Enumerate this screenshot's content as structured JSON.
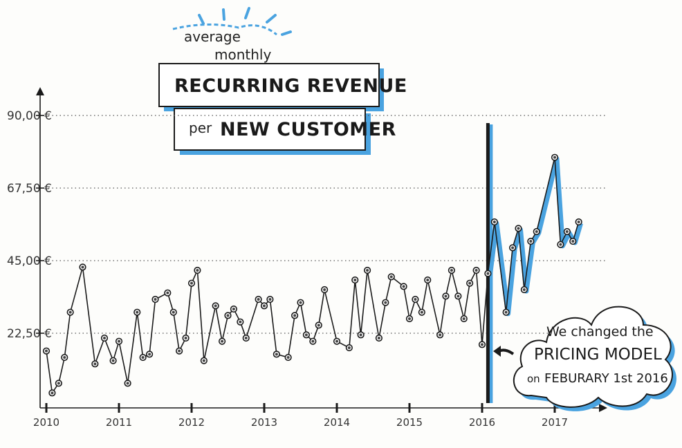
{
  "title": {
    "line1": "average",
    "line2": "monthly",
    "line3": "RECURRING REVENUE",
    "line4_small": "per",
    "line4_large": "NEW CUSTOMER"
  },
  "annotation": {
    "line1": "We changed the",
    "line2": "PRICING MODEL",
    "line3_on": "on",
    "line3_date": "FEBURARY 1st 2016"
  },
  "colors": {
    "accent": "#4aa3e0",
    "ink": "#1a1a1a",
    "grid": "#555555"
  },
  "chart_data": {
    "type": "line",
    "title": "average monthly RECURRING REVENUE per NEW CUSTOMER",
    "xlabel": "",
    "ylabel": "",
    "ylim": [
      0,
      95
    ],
    "yticks": [
      22.5,
      45,
      67.5,
      90
    ],
    "ytick_labels": [
      "22,50 €",
      "45,00 €",
      "67,50 €",
      "90,00 €"
    ],
    "xticks": [
      2010,
      2011,
      2012,
      2013,
      2014,
      2015,
      2016,
      2017
    ],
    "xtick_labels": [
      "2010",
      "2011",
      "2012",
      "2013",
      "2014",
      "2015",
      "2016",
      "2017"
    ],
    "grid": "horizontal dotted",
    "event_line_x": 2016.08,
    "series": [
      {
        "values": [
          [
            2010.0,
            17
          ],
          [
            2010.08,
            4
          ],
          [
            2010.17,
            7
          ],
          [
            2010.25,
            15
          ],
          [
            2010.33,
            29
          ],
          [
            2010.5,
            43
          ],
          [
            2010.67,
            13
          ],
          [
            2010.8,
            21
          ],
          [
            2010.92,
            14
          ],
          [
            2011.0,
            20
          ],
          [
            2011.12,
            7
          ],
          [
            2011.25,
            29
          ],
          [
            2011.33,
            15
          ],
          [
            2011.42,
            16
          ],
          [
            2011.5,
            33
          ],
          [
            2011.67,
            35
          ],
          [
            2011.75,
            29
          ],
          [
            2011.83,
            17
          ],
          [
            2011.92,
            21
          ],
          [
            2012.0,
            38
          ],
          [
            2012.08,
            42
          ],
          [
            2012.17,
            14
          ],
          [
            2012.33,
            31
          ],
          [
            2012.42,
            20
          ],
          [
            2012.5,
            28
          ],
          [
            2012.58,
            30
          ],
          [
            2012.67,
            26
          ],
          [
            2012.75,
            21
          ],
          [
            2012.92,
            33
          ],
          [
            2013.0,
            31
          ],
          [
            2013.08,
            33
          ],
          [
            2013.17,
            16
          ],
          [
            2013.33,
            15
          ],
          [
            2013.42,
            28
          ],
          [
            2013.5,
            32
          ],
          [
            2013.58,
            22
          ],
          [
            2013.67,
            20
          ],
          [
            2013.75,
            25
          ],
          [
            2013.83,
            36
          ],
          [
            2014.0,
            20
          ],
          [
            2014.17,
            18
          ],
          [
            2014.25,
            39
          ],
          [
            2014.33,
            22
          ],
          [
            2014.42,
            42
          ],
          [
            2014.58,
            21
          ],
          [
            2014.67,
            32
          ],
          [
            2014.75,
            40
          ],
          [
            2014.92,
            37
          ],
          [
            2015.0,
            27
          ],
          [
            2015.08,
            33
          ],
          [
            2015.17,
            29
          ],
          [
            2015.25,
            39
          ],
          [
            2015.42,
            22
          ],
          [
            2015.5,
            34
          ],
          [
            2015.58,
            42
          ],
          [
            2015.67,
            34
          ],
          [
            2015.75,
            27
          ],
          [
            2015.83,
            38
          ],
          [
            2015.92,
            42
          ],
          [
            2016.0,
            19
          ],
          [
            2016.08,
            41
          ],
          [
            2016.17,
            57
          ],
          [
            2016.33,
            29
          ],
          [
            2016.42,
            49
          ],
          [
            2016.5,
            55
          ],
          [
            2016.58,
            36
          ],
          [
            2016.67,
            51
          ],
          [
            2016.75,
            54
          ],
          [
            2017.0,
            77
          ],
          [
            2017.08,
            50
          ],
          [
            2017.17,
            54
          ],
          [
            2017.25,
            51
          ],
          [
            2017.33,
            57
          ]
        ]
      }
    ]
  }
}
